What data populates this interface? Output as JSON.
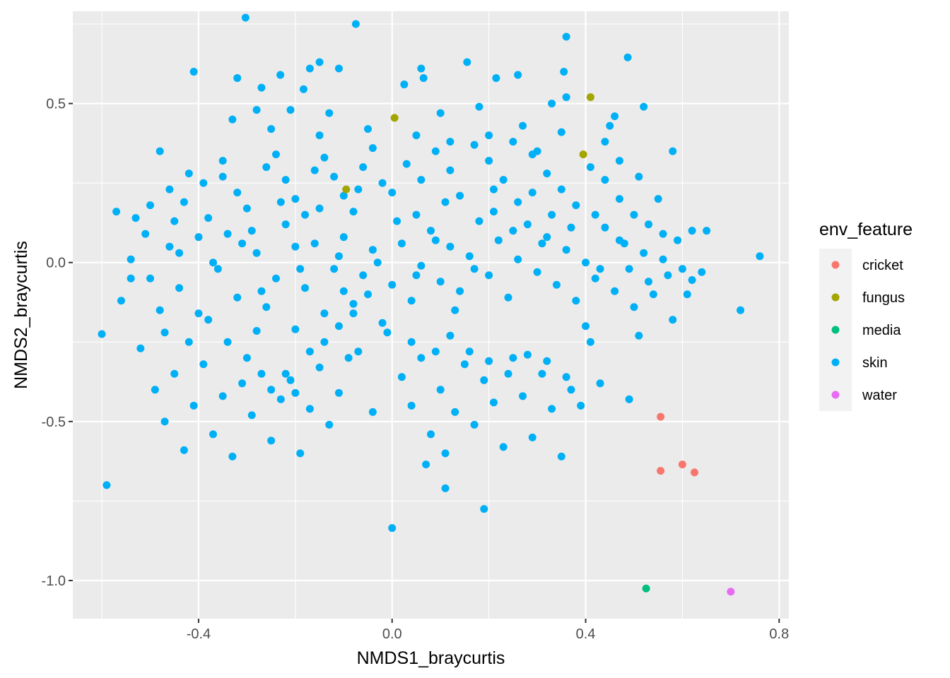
{
  "chart_data": {
    "type": "scatter",
    "xlabel": "NMDS1_braycurtis",
    "ylabel": "NMDS2_braycurtis",
    "xlim": [
      -0.66,
      0.82
    ],
    "ylim": [
      -1.12,
      0.79
    ],
    "x_ticks": [
      -0.4,
      0.0,
      0.4,
      0.8
    ],
    "x_tick_labels": [
      "-0.4",
      "0.0",
      "0.4",
      "0.8"
    ],
    "y_ticks": [
      -1.0,
      -0.5,
      0.0,
      0.5
    ],
    "y_tick_labels": [
      "-1.0",
      "-0.5",
      "0.0",
      "0.5"
    ],
    "grid": true,
    "legend": {
      "title": "env_feature",
      "position": "right"
    },
    "series": [
      {
        "name": "cricket",
        "color": "#F8766D",
        "points": [
          [
            0.555,
            -0.485
          ],
          [
            0.555,
            -0.655
          ],
          [
            0.6,
            -0.635
          ],
          [
            0.625,
            -0.66
          ]
        ]
      },
      {
        "name": "fungus",
        "color": "#A3A500",
        "points": [
          [
            0.41,
            0.52
          ],
          [
            0.395,
            0.34
          ],
          [
            0.005,
            0.455
          ],
          [
            -0.095,
            0.23
          ]
        ]
      },
      {
        "name": "media",
        "color": "#00BF7D",
        "points": [
          [
            0.525,
            -1.025
          ]
        ]
      },
      {
        "name": "water",
        "color": "#E76BF3",
        "points": [
          [
            0.7,
            -1.035
          ]
        ]
      },
      {
        "name": "skin",
        "color": "#00B0F6",
        "points": [
          [
            -0.303,
            0.77
          ],
          [
            -0.075,
            0.75
          ],
          [
            0.36,
            0.71
          ],
          [
            0.487,
            0.645
          ],
          [
            -0.41,
            0.6
          ],
          [
            -0.32,
            0.58
          ],
          [
            0.06,
            0.61
          ],
          [
            0.155,
            0.63
          ],
          [
            -0.15,
            0.63
          ],
          [
            0.355,
            0.6
          ],
          [
            -0.231,
            0.59
          ],
          [
            0.065,
            0.58
          ],
          [
            0.26,
            0.59
          ],
          [
            -0.17,
            0.61
          ],
          [
            -0.11,
            0.61
          ],
          [
            0.215,
            0.58
          ],
          [
            -0.183,
            0.545
          ],
          [
            0.025,
            0.56
          ],
          [
            -0.27,
            0.55
          ],
          [
            0.46,
            0.46
          ],
          [
            0.33,
            0.5
          ],
          [
            0.45,
            0.43
          ],
          [
            0.52,
            0.49
          ],
          [
            0.58,
            0.35
          ],
          [
            0.36,
            0.52
          ],
          [
            -0.48,
            0.35
          ],
          [
            -0.33,
            0.45
          ],
          [
            -0.28,
            0.48
          ],
          [
            -0.21,
            0.48
          ],
          [
            -0.13,
            0.47
          ],
          [
            0.1,
            0.47
          ],
          [
            0.18,
            0.49
          ],
          [
            0.27,
            0.43
          ],
          [
            0.35,
            0.41
          ],
          [
            0.44,
            0.38
          ],
          [
            -0.57,
            0.16
          ],
          [
            -0.53,
            0.14
          ],
          [
            -0.5,
            0.18
          ],
          [
            -0.46,
            0.23
          ],
          [
            -0.43,
            0.19
          ],
          [
            -0.39,
            0.25
          ],
          [
            -0.35,
            0.27
          ],
          [
            -0.32,
            0.22
          ],
          [
            -0.3,
            0.17
          ],
          [
            -0.26,
            0.3
          ],
          [
            -0.24,
            0.34
          ],
          [
            -0.22,
            0.26
          ],
          [
            -0.2,
            0.2
          ],
          [
            -0.18,
            0.15
          ],
          [
            -0.16,
            0.29
          ],
          [
            -0.14,
            0.33
          ],
          [
            -0.12,
            0.27
          ],
          [
            -0.1,
            0.21
          ],
          [
            -0.08,
            0.16
          ],
          [
            -0.06,
            0.3
          ],
          [
            -0.04,
            0.36
          ],
          [
            -0.02,
            0.25
          ],
          [
            0.0,
            0.22
          ],
          [
            0.03,
            0.31
          ],
          [
            0.06,
            0.26
          ],
          [
            0.09,
            0.35
          ],
          [
            0.12,
            0.29
          ],
          [
            0.14,
            0.21
          ],
          [
            0.17,
            0.37
          ],
          [
            0.2,
            0.32
          ],
          [
            0.23,
            0.26
          ],
          [
            0.26,
            0.19
          ],
          [
            0.29,
            0.34
          ],
          [
            0.32,
            0.28
          ],
          [
            0.35,
            0.23
          ],
          [
            0.38,
            0.18
          ],
          [
            0.41,
            0.3
          ],
          [
            0.44,
            0.26
          ],
          [
            0.47,
            0.2
          ],
          [
            0.5,
            0.15
          ],
          [
            0.53,
            0.12
          ],
          [
            0.56,
            0.09
          ],
          [
            0.59,
            0.07
          ],
          [
            0.62,
            0.1
          ],
          [
            0.65,
            0.1
          ],
          [
            0.76,
            0.02
          ],
          [
            0.72,
            -0.15
          ],
          [
            -0.6,
            -0.225
          ],
          [
            -0.59,
            -0.7
          ],
          [
            -0.56,
            -0.12
          ],
          [
            -0.54,
            0.01
          ],
          [
            -0.52,
            -0.27
          ],
          [
            -0.5,
            -0.05
          ],
          [
            -0.48,
            -0.15
          ],
          [
            -0.46,
            0.05
          ],
          [
            -0.44,
            -0.08
          ],
          [
            -0.42,
            -0.25
          ],
          [
            -0.4,
            0.08
          ],
          [
            -0.38,
            -0.18
          ],
          [
            -0.36,
            -0.02
          ],
          [
            -0.34,
            0.09
          ],
          [
            -0.32,
            -0.11
          ],
          [
            -0.3,
            -0.3
          ],
          [
            -0.28,
            0.03
          ],
          [
            -0.26,
            -0.14
          ],
          [
            -0.24,
            -0.05
          ],
          [
            -0.22,
            0.12
          ],
          [
            -0.2,
            -0.21
          ],
          [
            -0.18,
            -0.08
          ],
          [
            -0.16,
            0.06
          ],
          [
            -0.14,
            -0.16
          ],
          [
            -0.12,
            -0.02
          ],
          [
            -0.1,
            0.08
          ],
          [
            -0.08,
            -0.13
          ],
          [
            -0.06,
            -0.04
          ],
          [
            -0.04,
            0.04
          ],
          [
            -0.02,
            -0.19
          ],
          [
            0.0,
            -0.07
          ],
          [
            0.02,
            0.06
          ],
          [
            0.04,
            -0.12
          ],
          [
            0.06,
            -0.01
          ],
          [
            0.08,
            0.1
          ],
          [
            0.1,
            -0.06
          ],
          [
            0.12,
            0.05
          ],
          [
            0.14,
            -0.09
          ],
          [
            0.16,
            0.02
          ],
          [
            0.18,
            0.13
          ],
          [
            0.2,
            -0.04
          ],
          [
            0.22,
            0.07
          ],
          [
            0.24,
            -0.11
          ],
          [
            0.26,
            0.01
          ],
          [
            0.28,
            0.12
          ],
          [
            0.3,
            -0.03
          ],
          [
            0.32,
            0.08
          ],
          [
            0.34,
            -0.07
          ],
          [
            0.36,
            0.04
          ],
          [
            0.38,
            -0.12
          ],
          [
            0.4,
            0.0
          ],
          [
            0.42,
            -0.05
          ],
          [
            0.44,
            0.11
          ],
          [
            0.46,
            -0.09
          ],
          [
            0.48,
            0.06
          ],
          [
            0.5,
            -0.14
          ],
          [
            0.52,
            0.03
          ],
          [
            0.54,
            -0.1
          ],
          [
            0.56,
            0.01
          ],
          [
            0.58,
            -0.18
          ],
          [
            0.6,
            -0.02
          ],
          [
            0.62,
            -0.055
          ],
          [
            0.51,
            -0.23
          ],
          [
            -0.49,
            -0.4
          ],
          [
            -0.47,
            -0.5
          ],
          [
            -0.45,
            -0.35
          ],
          [
            -0.43,
            -0.59
          ],
          [
            -0.41,
            -0.45
          ],
          [
            -0.39,
            -0.32
          ],
          [
            -0.37,
            -0.54
          ],
          [
            -0.35,
            -0.42
          ],
          [
            -0.33,
            -0.61
          ],
          [
            -0.31,
            -0.38
          ],
          [
            -0.29,
            -0.48
          ],
          [
            -0.27,
            -0.35
          ],
          [
            -0.25,
            -0.56
          ],
          [
            -0.23,
            -0.43
          ],
          [
            -0.21,
            -0.37
          ],
          [
            -0.19,
            -0.6
          ],
          [
            -0.17,
            -0.46
          ],
          [
            -0.15,
            -0.33
          ],
          [
            -0.13,
            -0.51
          ],
          [
            -0.11,
            -0.41
          ],
          [
            -0.09,
            -0.3
          ],
          [
            -0.07,
            -0.28
          ],
          [
            -0.04,
            -0.47
          ],
          [
            -0.01,
            -0.22
          ],
          [
            0.02,
            -0.36
          ],
          [
            0.04,
            -0.45
          ],
          [
            0.06,
            -0.3
          ],
          [
            0.08,
            -0.54
          ],
          [
            0.1,
            -0.4
          ],
          [
            0.11,
            -0.6
          ],
          [
            0.11,
            -0.71
          ],
          [
            0.13,
            -0.47
          ],
          [
            0.15,
            -0.32
          ],
          [
            0.17,
            -0.51
          ],
          [
            0.19,
            -0.37
          ],
          [
            0.19,
            -0.775
          ],
          [
            0.21,
            -0.44
          ],
          [
            0.23,
            -0.58
          ],
          [
            0.25,
            -0.3
          ],
          [
            0.27,
            -0.42
          ],
          [
            0.29,
            -0.55
          ],
          [
            0.31,
            -0.35
          ],
          [
            0.33,
            -0.46
          ],
          [
            0.35,
            -0.61
          ],
          [
            0.37,
            -0.4
          ],
          [
            0.39,
            -0.45
          ],
          [
            0.41,
            -0.25
          ],
          [
            0.43,
            -0.38
          ],
          [
            0.49,
            -0.43
          ],
          [
            0.0,
            -0.835
          ],
          [
            0.07,
            -0.635
          ],
          [
            -0.28,
            -0.215
          ],
          [
            -0.25,
            -0.4
          ],
          [
            -0.22,
            -0.35
          ],
          [
            -0.2,
            -0.41
          ],
          [
            -0.17,
            -0.28
          ],
          [
            -0.14,
            -0.25
          ],
          [
            -0.11,
            -0.2
          ],
          [
            -0.08,
            -0.16
          ],
          [
            -0.05,
            -0.1
          ],
          [
            0.04,
            -0.25
          ],
          [
            0.09,
            -0.28
          ],
          [
            0.12,
            -0.23
          ],
          [
            0.16,
            -0.28
          ],
          [
            0.2,
            -0.31
          ],
          [
            0.24,
            -0.35
          ],
          [
            0.28,
            -0.29
          ],
          [
            0.32,
            -0.31
          ],
          [
            0.36,
            -0.36
          ],
          [
            0.4,
            -0.2
          ],
          [
            -0.15,
            0.4
          ],
          [
            -0.05,
            0.42
          ],
          [
            0.05,
            0.4
          ],
          [
            0.12,
            0.38
          ],
          [
            0.2,
            0.4
          ],
          [
            0.25,
            0.38
          ],
          [
            0.3,
            0.35
          ],
          [
            -0.25,
            0.42
          ],
          [
            -0.35,
            0.32
          ],
          [
            -0.42,
            0.28
          ],
          [
            -0.45,
            0.13
          ],
          [
            -0.38,
            0.14
          ],
          [
            -0.29,
            0.1
          ],
          [
            -0.2,
            0.05
          ],
          [
            -0.1,
            -0.09
          ],
          [
            0.05,
            0.15
          ],
          [
            0.11,
            0.19
          ],
          [
            0.21,
            0.16
          ],
          [
            0.31,
            0.06
          ],
          [
            0.42,
            0.15
          ],
          [
            0.47,
            0.32
          ],
          [
            0.51,
            0.27
          ],
          [
            0.55,
            0.2
          ],
          [
            -0.54,
            -0.05
          ],
          [
            -0.51,
            0.09
          ],
          [
            -0.47,
            -0.22
          ],
          [
            -0.44,
            0.03
          ],
          [
            -0.4,
            -0.16
          ],
          [
            -0.37,
            0.0
          ],
          [
            -0.34,
            -0.25
          ],
          [
            -0.31,
            0.06
          ],
          [
            -0.27,
            -0.09
          ],
          [
            -0.23,
            0.19
          ],
          [
            -0.19,
            -0.02
          ],
          [
            -0.15,
            0.17
          ],
          [
            -0.11,
            0.02
          ],
          [
            -0.07,
            0.23
          ],
          [
            -0.03,
            0.0
          ],
          [
            0.01,
            0.13
          ],
          [
            0.05,
            -0.04
          ],
          [
            0.09,
            0.07
          ],
          [
            0.13,
            -0.15
          ],
          [
            0.17,
            -0.02
          ],
          [
            0.21,
            0.23
          ],
          [
            0.25,
            0.1
          ],
          [
            0.29,
            0.22
          ],
          [
            0.33,
            0.15
          ],
          [
            0.37,
            0.11
          ],
          [
            0.43,
            -0.02
          ],
          [
            0.47,
            0.07
          ],
          [
            0.49,
            -0.02
          ],
          [
            0.53,
            -0.06
          ],
          [
            0.57,
            -0.04
          ],
          [
            0.61,
            -0.1
          ],
          [
            0.64,
            -0.03
          ]
        ]
      }
    ]
  }
}
